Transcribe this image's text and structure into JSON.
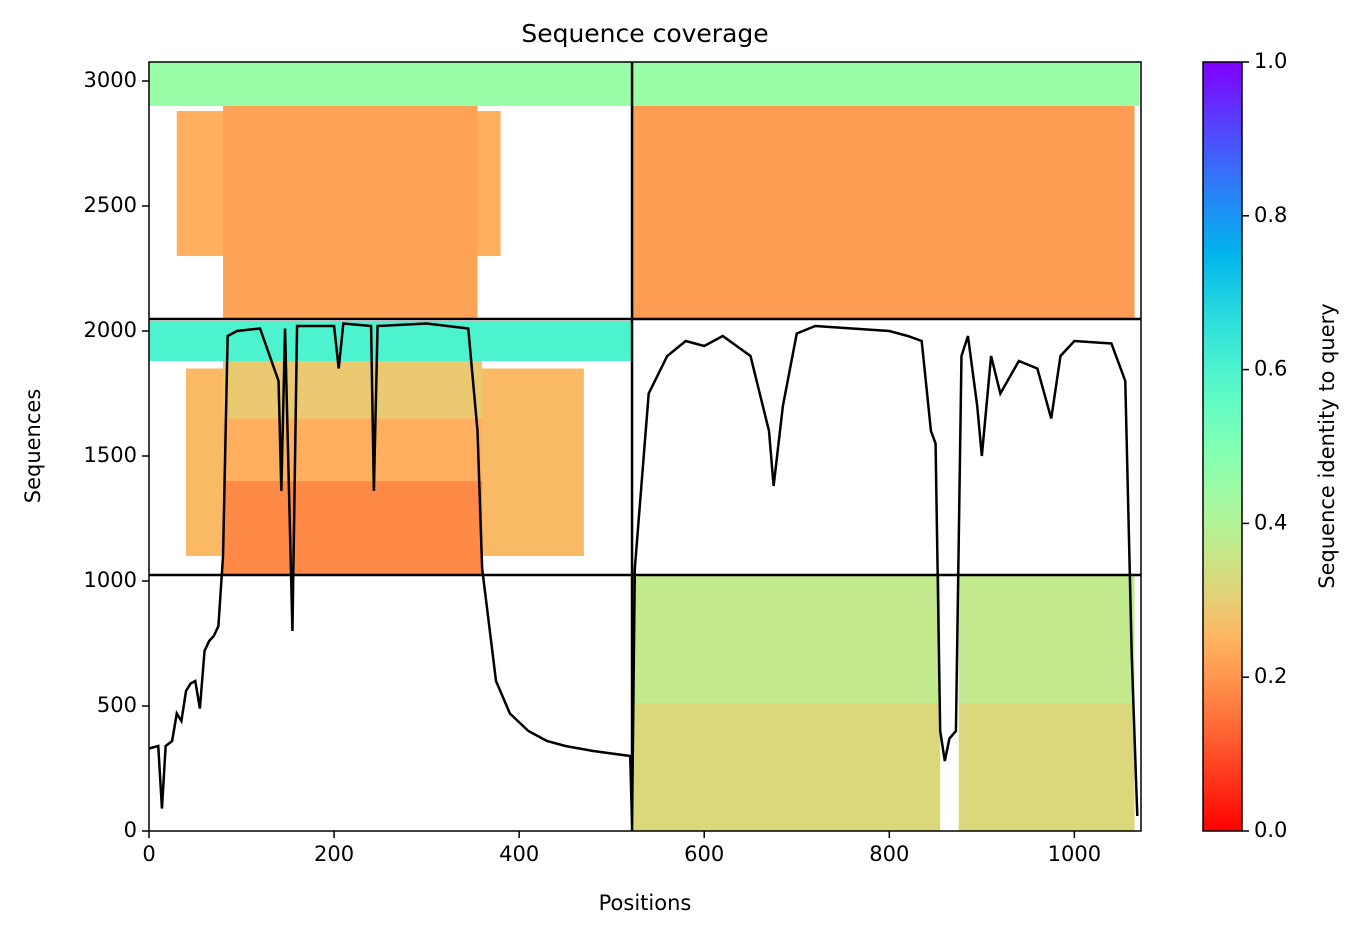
{
  "chart_data": {
    "type": "coverage",
    "title": "Sequence coverage",
    "xlabel": "Positions",
    "ylabel": "Sequences",
    "colorbar_label": "Sequence identity to query",
    "colormap": "rainbow_r",
    "clim": [
      0,
      1
    ],
    "cticks": [
      {
        "value": 0,
        "label": "0.0"
      },
      0.2,
      0.4,
      0.6,
      0.8,
      {
        "value": 1,
        "label": "1.0"
      }
    ],
    "xlim": [
      0,
      1072
    ],
    "ylim": [
      0,
      3076
    ],
    "xticks": [
      0,
      200,
      400,
      600,
      800,
      1000
    ],
    "yticks": [
      0,
      500,
      1000,
      1500,
      2000,
      2500,
      3000
    ],
    "separators_x": [
      522
    ],
    "separators_y": [
      1024,
      2048
    ],
    "blocks": [
      {
        "x": [
          0,
          522
        ],
        "y": [
          2900,
          3076
        ],
        "identity": 0.45
      },
      {
        "x": [
          30,
          380
        ],
        "y": [
          2300,
          2880
        ],
        "identity": 0.24
      },
      {
        "x": [
          80,
          355
        ],
        "y": [
          2048,
          2900
        ],
        "identity": 0.22
      },
      {
        "x": [
          522,
          1070
        ],
        "y": [
          2900,
          3076
        ],
        "identity": 0.45
      },
      {
        "x": [
          522,
          1065
        ],
        "y": [
          2048,
          2900
        ],
        "identity": 0.21
      },
      {
        "x": [
          0,
          522
        ],
        "y": [
          1880,
          2040
        ],
        "identity": 0.6
      },
      {
        "x": [
          40,
          470
        ],
        "y": [
          1100,
          1850
        ],
        "identity": 0.26
      },
      {
        "x": [
          80,
          360
        ],
        "y": [
          1650,
          1880
        ],
        "identity": 0.29
      },
      {
        "x": [
          80,
          360
        ],
        "y": [
          1400,
          1650
        ],
        "identity": 0.24
      },
      {
        "x": [
          80,
          360
        ],
        "y": [
          1024,
          1400
        ],
        "identity": 0.18
      },
      {
        "x": [
          522,
          855
        ],
        "y": [
          512,
          1024
        ],
        "identity": 0.37
      },
      {
        "x": [
          875,
          1065
        ],
        "y": [
          512,
          1024
        ],
        "identity": 0.37
      },
      {
        "x": [
          522,
          855
        ],
        "y": [
          0,
          512
        ],
        "identity": 0.32
      },
      {
        "x": [
          875,
          1065
        ],
        "y": [
          0,
          512
        ],
        "identity": 0.32
      }
    ],
    "x": [
      0,
      10,
      14,
      18,
      25,
      30,
      35,
      40,
      45,
      50,
      55,
      60,
      65,
      70,
      75,
      80,
      85,
      95,
      120,
      140,
      143,
      147,
      155,
      160,
      200,
      205,
      210,
      240,
      243,
      247,
      300,
      345,
      355,
      360,
      365,
      375,
      390,
      410,
      430,
      450,
      480,
      520,
      522,
      525,
      540,
      560,
      580,
      600,
      620,
      650,
      670,
      675,
      685,
      700,
      720,
      760,
      800,
      820,
      835,
      845,
      850,
      855,
      860,
      865,
      872,
      878,
      885,
      895,
      900,
      910,
      920,
      940,
      960,
      975,
      985,
      1000,
      1040,
      1055,
      1062,
      1068
    ],
    "values": [
      330,
      340,
      90,
      340,
      360,
      470,
      440,
      560,
      590,
      600,
      490,
      720,
      760,
      780,
      820,
      1100,
      1980,
      2000,
      2010,
      1800,
      1360,
      2010,
      800,
      2020,
      2020,
      1850,
      2030,
      2020,
      1360,
      2020,
      2030,
      2010,
      1600,
      1050,
      900,
      600,
      470,
      400,
      360,
      340,
      320,
      300,
      30,
      1050,
      1750,
      1900,
      1960,
      1940,
      1980,
      1900,
      1600,
      1380,
      1700,
      1990,
      2020,
      2010,
      2000,
      1980,
      1960,
      1600,
      1550,
      400,
      280,
      370,
      400,
      1900,
      1980,
      1700,
      1500,
      1900,
      1750,
      1880,
      1850,
      1650,
      1900,
      1960,
      1950,
      1800,
      700,
      60
    ],
    "line_color": "#000000"
  }
}
